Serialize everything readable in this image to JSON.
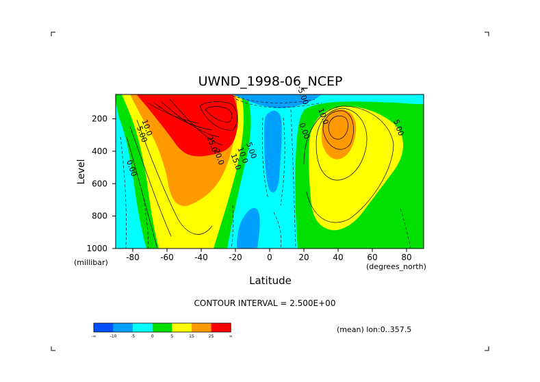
{
  "chart_data": {
    "type": "contour",
    "title": "UWND_1998-06_NCEP",
    "xlabel": "Latitude",
    "x_units": "(degrees_north)",
    "ylabel": "Level",
    "y_units": "(millibar)",
    "x_ticks": [
      "-80",
      "-60",
      "-40",
      "-20",
      "0",
      "20",
      "40",
      "60",
      "80"
    ],
    "y_ticks": [
      "200",
      "400",
      "600",
      "800",
      "1000"
    ],
    "xlim": [
      -90,
      90
    ],
    "ylim": [
      1000,
      50
    ],
    "y_inverted": true,
    "contour_interval_text": "CONTOUR INTERVAL = 2.500E+00",
    "contour_interval": 2.5,
    "subtitle_right": "(mean) lon:0..357.5",
    "contour_labels": [
      {
        "text": "10.0",
        "lat": -73,
        "level": 260,
        "color": "#000000"
      },
      {
        "text": "5.00",
        "lat": -76,
        "level": 300,
        "color": "#000000"
      },
      {
        "text": "0.00",
        "lat": -82,
        "level": 510,
        "color": "#000000"
      },
      {
        "text": "25.0",
        "lat": -35,
        "level": 360,
        "color": "#000000"
      },
      {
        "text": "20.0",
        "lat": -31,
        "level": 440,
        "color": "#000000"
      },
      {
        "text": "15.0",
        "lat": -21,
        "level": 470,
        "color": "#000000"
      },
      {
        "text": "10.0",
        "lat": -17,
        "level": 430,
        "color": "#000000"
      },
      {
        "text": "5.00",
        "lat": -12,
        "level": 400,
        "color": "#000000"
      },
      {
        "text": "0.00",
        "lat": 19,
        "level": 280,
        "color": "#000000"
      },
      {
        "text": "10.0",
        "lat": 30,
        "level": 190,
        "color": "#000000"
      },
      {
        "text": "5.00",
        "lat": 74,
        "level": 260,
        "color": "#000000"
      },
      {
        "text": "-5.00",
        "lat": 18,
        "level": 60,
        "color": "#000000"
      }
    ],
    "colorbar": {
      "colors": [
        "#0050ff",
        "#00a0ff",
        "#00ffff",
        "#00e000",
        "#ffff00",
        "#ff9900",
        "#ff0000"
      ],
      "labels": [
        "-∞",
        "-10",
        "-5",
        "0",
        "5",
        "15",
        "25",
        "∞"
      ]
    }
  }
}
